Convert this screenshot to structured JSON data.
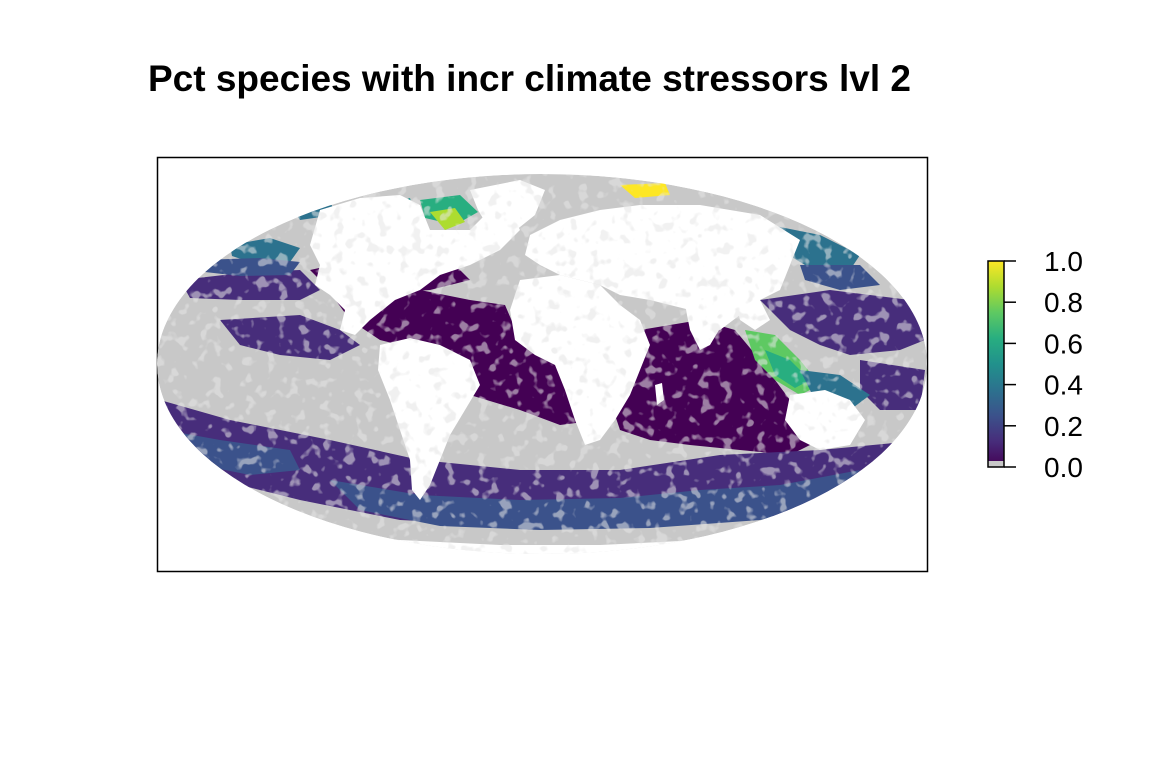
{
  "title": "Pct species with incr climate stressors lvl 2",
  "projection": "mollweide",
  "colors": {
    "na_ocean": "#c8c8c8",
    "land": "#ffffff",
    "frame": "#000000",
    "palette": [
      "#440154",
      "#472d7b",
      "#3b528b",
      "#2c728e",
      "#21918c",
      "#28ae80",
      "#5ec962",
      "#addc30",
      "#fde725"
    ]
  },
  "legend": {
    "min": 0.0,
    "max": 1.0,
    "tick_labels": [
      "1.0",
      "0.8",
      "0.6",
      "0.4",
      "0.2",
      "0.0"
    ],
    "tick_values": [
      1.0,
      0.8,
      0.6,
      0.4,
      0.2,
      0.0
    ]
  }
}
